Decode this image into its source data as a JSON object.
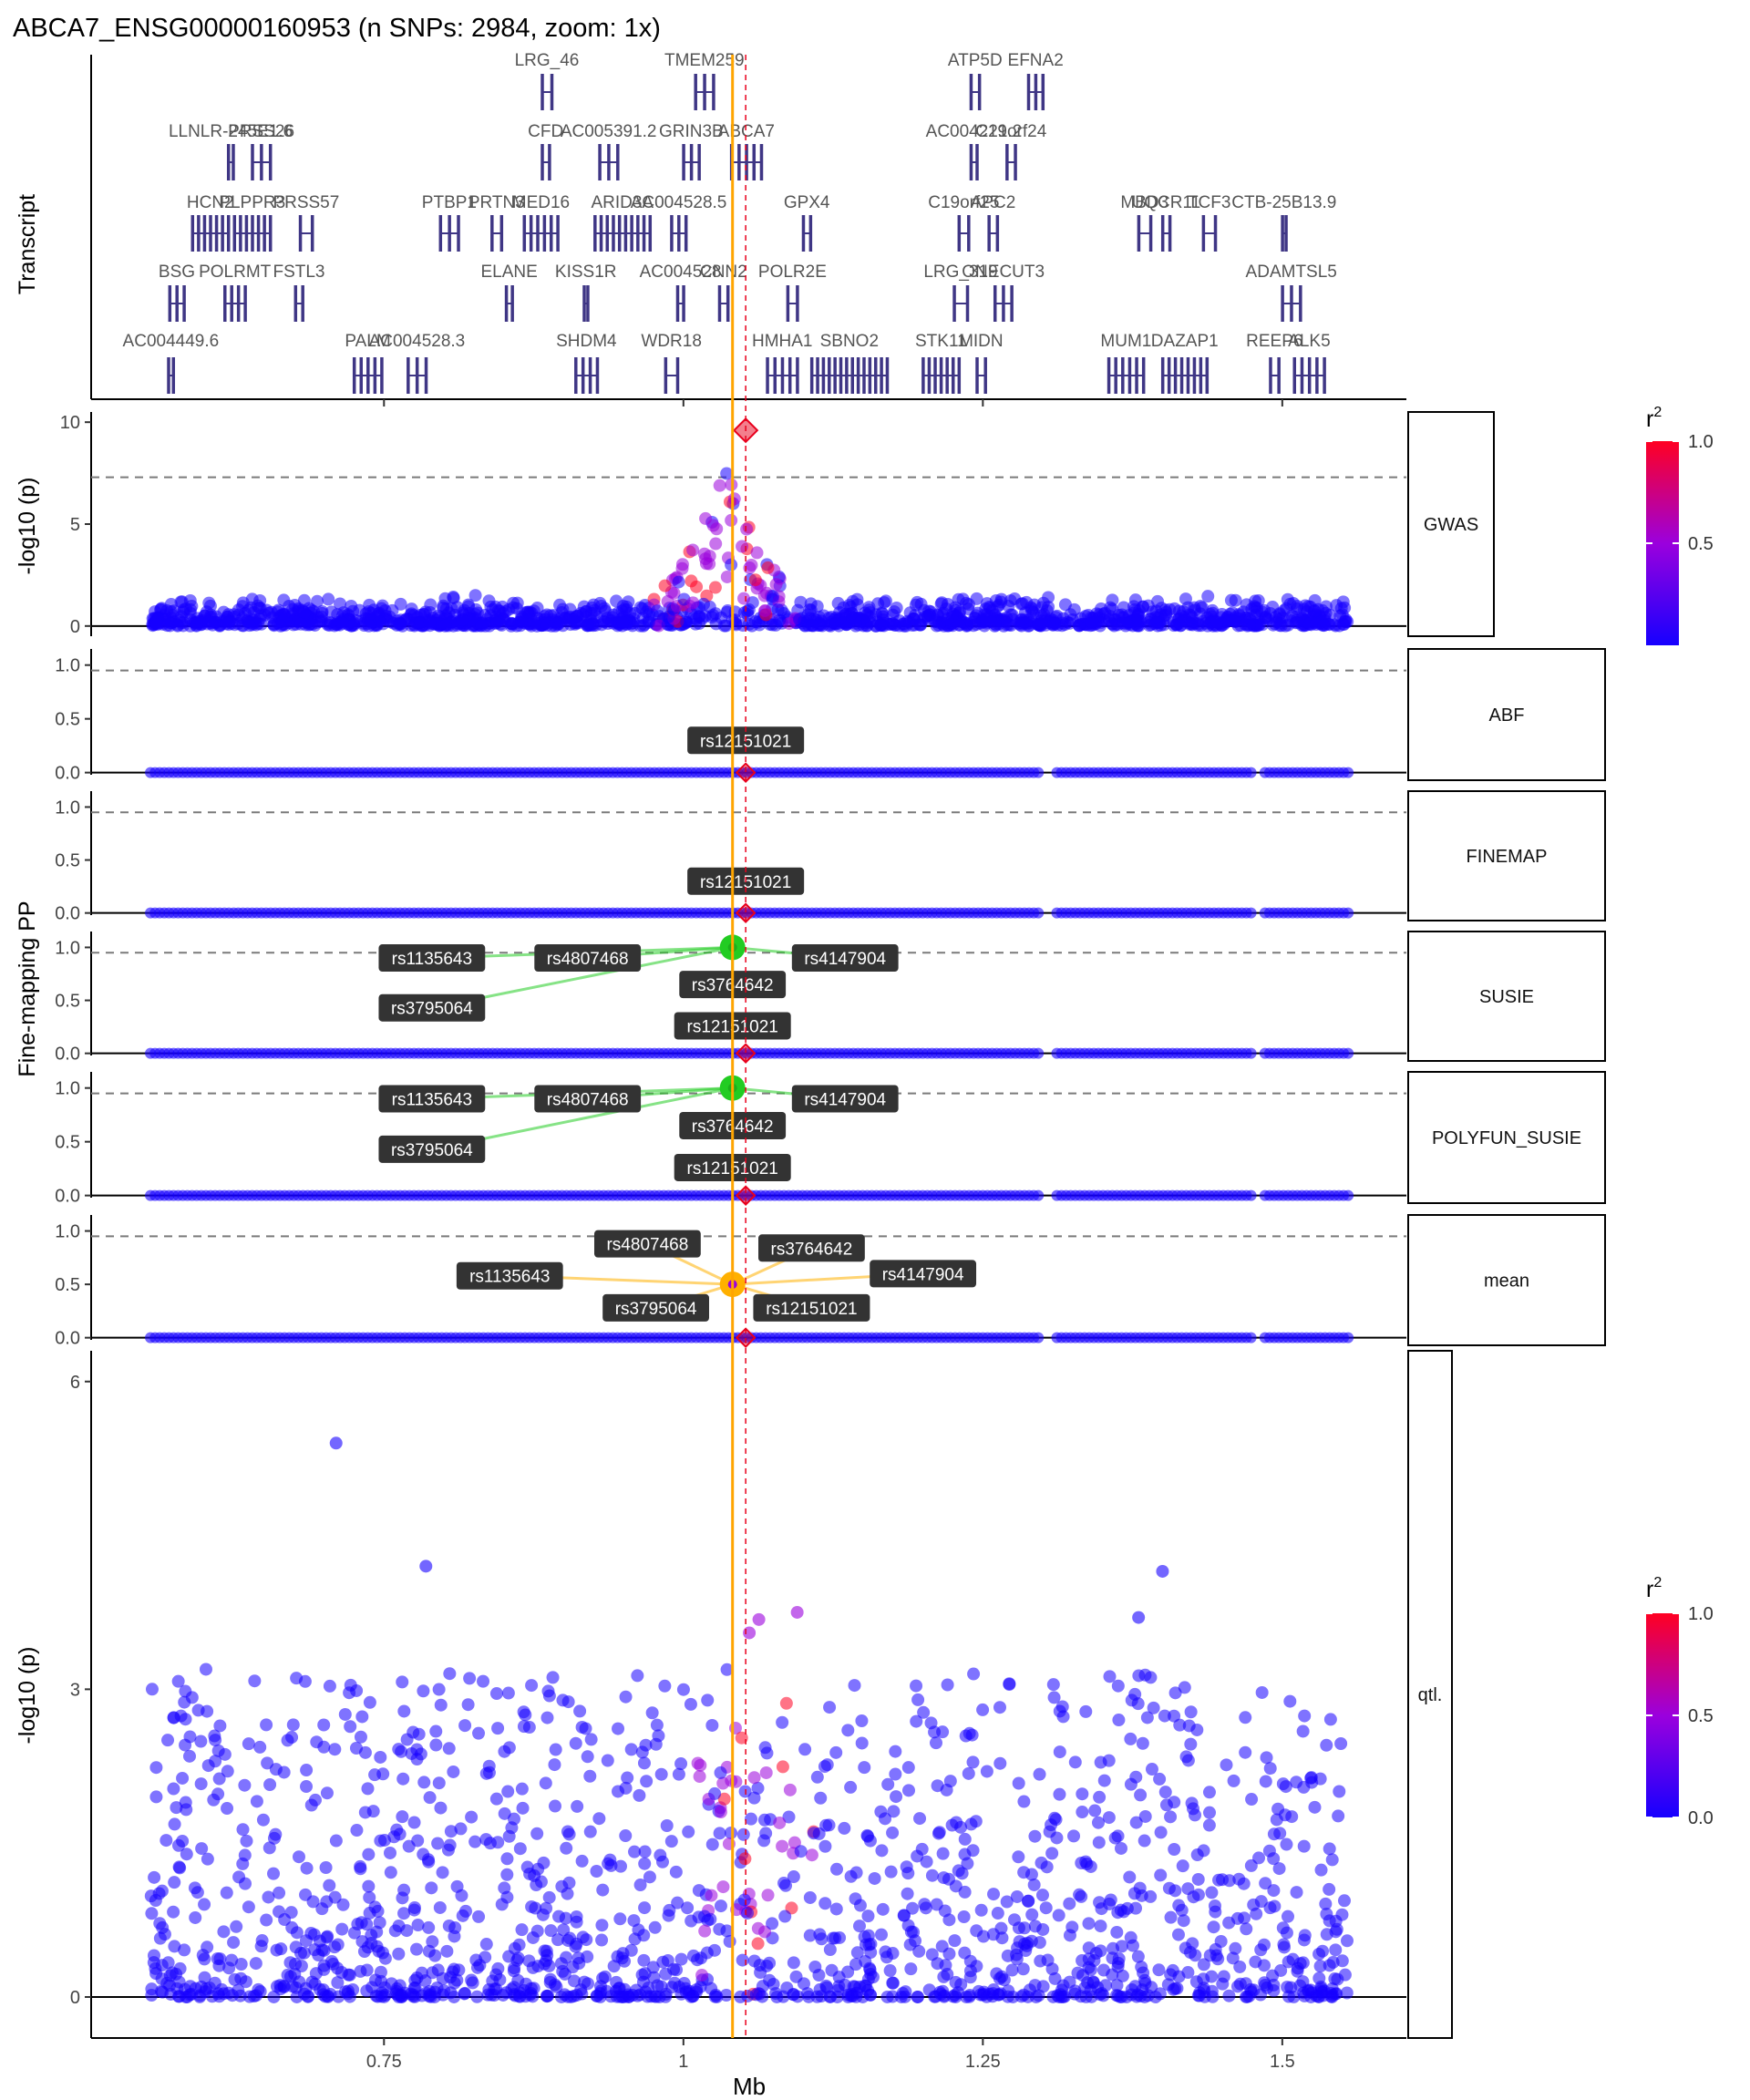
{
  "title": "ABCA7_ENSG00000160953   (n SNPs: 2984, zoom: 1x)",
  "xlabel": "Mb",
  "x_ticks": [
    {
      "value": 0.75,
      "label": "0.75"
    },
    {
      "value": 1.0,
      "label": "1"
    },
    {
      "value": 1.25,
      "label": "1.25"
    },
    {
      "value": 1.5,
      "label": "1.5"
    }
  ],
  "transcript_ylabel": "Transcript",
  "gwas_ylabel": "-log10 (p)",
  "fm_ylabel": "Fine-mapping PP",
  "qtl_ylabel": "-log10 (p)",
  "legend": {
    "title": "r2",
    "ticks_gwas": [
      "1.0",
      "0.5"
    ],
    "ticks_qtl": [
      "1.0",
      "0.5",
      "0.0"
    ],
    "gradient": [
      "#ff0022",
      "#9b00dd",
      "#1600ff"
    ]
  },
  "colors": {
    "gene": "#3f3685",
    "lead_line": "#ffa500",
    "threshold_line": "#7a7a7a",
    "credible_set_susie": "#22cc22",
    "credible_set_mean": "#ffb000",
    "lead_snp": "#e8001c"
  },
  "chart_data": [
    {
      "type": "gene_track",
      "panel": "Transcript",
      "genes": [
        {
          "name": "LRG_46",
          "start": 0.882,
          "end": 0.89,
          "row": 0
        },
        {
          "name": "TMEM259",
          "start": 1.01,
          "end": 1.025,
          "row": 0
        },
        {
          "name": "ATP5D",
          "start": 1.24,
          "end": 1.247,
          "row": 0
        },
        {
          "name": "EFNA2",
          "start": 1.288,
          "end": 1.3,
          "row": 0
        },
        {
          "name": "LLNLR-245E1.6",
          "start": 0.62,
          "end": 0.624,
          "row": 1
        },
        {
          "name": "PRSS26",
          "start": 0.64,
          "end": 0.655,
          "row": 1
        },
        {
          "name": "CFD",
          "start": 0.882,
          "end": 0.888,
          "row": 1
        },
        {
          "name": "AC005391.2",
          "start": 0.93,
          "end": 0.945,
          "row": 1
        },
        {
          "name": "GRIN3B",
          "start": 1.0,
          "end": 1.013,
          "row": 1
        },
        {
          "name": "ABCA7",
          "start": 1.04,
          "end": 1.065,
          "row": 1
        },
        {
          "name": "AC004221.2",
          "start": 1.24,
          "end": 1.245,
          "row": 1
        },
        {
          "name": "C19orf24",
          "start": 1.27,
          "end": 1.277,
          "row": 1
        },
        {
          "name": "HCN2",
          "start": 0.59,
          "end": 0.62,
          "row": 2
        },
        {
          "name": "PLPPR3",
          "start": 0.625,
          "end": 0.655,
          "row": 2
        },
        {
          "name": "PRSS57",
          "start": 0.68,
          "end": 0.69,
          "row": 2
        },
        {
          "name": "PTBP1",
          "start": 0.797,
          "end": 0.812,
          "row": 2
        },
        {
          "name": "PRTN3",
          "start": 0.84,
          "end": 0.848,
          "row": 2
        },
        {
          "name": "MED16",
          "start": 0.867,
          "end": 0.895,
          "row": 2
        },
        {
          "name": "ARID3A",
          "start": 0.926,
          "end": 0.972,
          "row": 2
        },
        {
          "name": "AC004528.5",
          "start": 0.99,
          "end": 1.002,
          "row": 2
        },
        {
          "name": "GPX4",
          "start": 1.1,
          "end": 1.106,
          "row": 2
        },
        {
          "name": "C19orf25",
          "start": 1.23,
          "end": 1.238,
          "row": 2
        },
        {
          "name": "APC2",
          "start": 1.255,
          "end": 1.262,
          "row": 2
        },
        {
          "name": "MBD3",
          "start": 1.38,
          "end": 1.39,
          "row": 2
        },
        {
          "name": "UQCR11",
          "start": 1.4,
          "end": 1.406,
          "row": 2
        },
        {
          "name": "TCF3",
          "start": 1.434,
          "end": 1.444,
          "row": 2
        },
        {
          "name": "CTB-25B13.9",
          "start": 1.5,
          "end": 1.503,
          "row": 2
        },
        {
          "name": "BSG",
          "start": 0.571,
          "end": 0.583,
          "row": 3
        },
        {
          "name": "POLRMT",
          "start": 0.617,
          "end": 0.634,
          "row": 3
        },
        {
          "name": "FSTL3",
          "start": 0.676,
          "end": 0.682,
          "row": 3
        },
        {
          "name": "ELANE",
          "start": 0.852,
          "end": 0.857,
          "row": 3
        },
        {
          "name": "KISS1R",
          "start": 0.917,
          "end": 0.92,
          "row": 3
        },
        {
          "name": "AC004528",
          "start": 0.995,
          "end": 1.0,
          "row": 3
        },
        {
          "name": "CNN2",
          "start": 1.03,
          "end": 1.037,
          "row": 3
        },
        {
          "name": "POLR2E",
          "start": 1.087,
          "end": 1.095,
          "row": 3
        },
        {
          "name": "LRG_319",
          "start": 1.226,
          "end": 1.237,
          "row": 3
        },
        {
          "name": "ONECUT3",
          "start": 1.26,
          "end": 1.274,
          "row": 3
        },
        {
          "name": "ADAMTSL5",
          "start": 1.5,
          "end": 1.515,
          "row": 3
        },
        {
          "name": "AC004449.6",
          "start": 0.57,
          "end": 0.574,
          "row": 4
        },
        {
          "name": "PALM",
          "start": 0.725,
          "end": 0.748,
          "row": 4
        },
        {
          "name": "AC004528.3",
          "start": 0.77,
          "end": 0.785,
          "row": 4
        },
        {
          "name": "SHDM4",
          "start": 0.91,
          "end": 0.928,
          "row": 4
        },
        {
          "name": "WDR18",
          "start": 0.985,
          "end": 0.995,
          "row": 4
        },
        {
          "name": "HMHA1",
          "start": 1.07,
          "end": 1.095,
          "row": 4
        },
        {
          "name": "SBNO2",
          "start": 1.107,
          "end": 1.17,
          "row": 4
        },
        {
          "name": "STK11",
          "start": 1.2,
          "end": 1.23,
          "row": 4
        },
        {
          "name": "MIDN",
          "start": 1.245,
          "end": 1.252,
          "row": 4
        },
        {
          "name": "MUM1",
          "start": 1.355,
          "end": 1.384,
          "row": 4
        },
        {
          "name": "DAZAP1",
          "start": 1.4,
          "end": 1.437,
          "row": 4
        },
        {
          "name": "REEP6",
          "start": 1.49,
          "end": 1.497,
          "row": 4
        },
        {
          "name": "ALK5",
          "start": 1.51,
          "end": 1.535,
          "row": 4
        }
      ]
    },
    {
      "type": "scatter",
      "panel": "GWAS",
      "strip_label": "GWAS",
      "ylim": [
        0,
        10.5
      ],
      "y_ticks": [
        0,
        5,
        10
      ],
      "threshold": 7.3,
      "lead_snp": {
        "x": 1.052,
        "y": 9.6
      },
      "x_range": [
        0.555,
        1.555
      ],
      "background_max": 1.3,
      "peak_center": 1.035,
      "peak_height": 8.0
    },
    {
      "type": "scatter",
      "panel": "ABF",
      "strip_label": "ABF",
      "ylim": [
        0,
        1.15
      ],
      "y_ticks": [
        0.0,
        0.5,
        1.0
      ],
      "threshold": 0.95,
      "labels": [
        {
          "text": "rs12151021",
          "x": 1.052,
          "y": 0.3
        }
      ]
    },
    {
      "type": "scatter",
      "panel": "FINEMAP",
      "strip_label": "FINEMAP",
      "ylim": [
        0,
        1.15
      ],
      "y_ticks": [
        0.0,
        0.5,
        1.0
      ],
      "threshold": 0.95,
      "labels": [
        {
          "text": "rs12151021",
          "x": 1.052,
          "y": 0.3
        }
      ]
    },
    {
      "type": "scatter",
      "panel": "SUSIE",
      "strip_label": "SUSIE",
      "ylim": [
        0,
        1.15
      ],
      "y_ticks": [
        0.0,
        0.5,
        1.0
      ],
      "threshold": 0.95,
      "credible_set_point": {
        "x": 1.041,
        "y": 1.0
      },
      "labels": [
        {
          "text": "rs1135643",
          "x": 0.79,
          "y": 0.9
        },
        {
          "text": "rs4807468",
          "x": 0.92,
          "y": 0.9
        },
        {
          "text": "rs3795064",
          "x": 0.79,
          "y": 0.43
        },
        {
          "text": "rs3764642",
          "x": 1.041,
          "y": 0.65
        },
        {
          "text": "rs4147904",
          "x": 1.135,
          "y": 0.9
        },
        {
          "text": "rs12151021",
          "x": 1.041,
          "y": 0.26
        }
      ]
    },
    {
      "type": "scatter",
      "panel": "POLYFUN_SUSIE",
      "strip_label": "POLYFUN_SUSIE",
      "ylim": [
        0,
        1.15
      ],
      "y_ticks": [
        0.0,
        0.5,
        1.0
      ],
      "threshold": 0.95,
      "credible_set_point": {
        "x": 1.041,
        "y": 1.0
      },
      "labels": [
        {
          "text": "rs1135643",
          "x": 0.79,
          "y": 0.9
        },
        {
          "text": "rs4807468",
          "x": 0.92,
          "y": 0.9
        },
        {
          "text": "rs3795064",
          "x": 0.79,
          "y": 0.43
        },
        {
          "text": "rs3764642",
          "x": 1.041,
          "y": 0.65
        },
        {
          "text": "rs4147904",
          "x": 1.135,
          "y": 0.9
        },
        {
          "text": "rs12151021",
          "x": 1.041,
          "y": 0.26
        }
      ]
    },
    {
      "type": "scatter",
      "panel": "mean",
      "strip_label": "mean",
      "ylim": [
        0,
        1.15
      ],
      "y_ticks": [
        0.0,
        0.5,
        1.0
      ],
      "threshold": 0.95,
      "credible_set_point": {
        "x": 1.041,
        "y": 0.5
      },
      "labels": [
        {
          "text": "rs4807468",
          "x": 0.97,
          "y": 0.88
        },
        {
          "text": "rs3764642",
          "x": 1.107,
          "y": 0.84
        },
        {
          "text": "rs1135643",
          "x": 0.855,
          "y": 0.58
        },
        {
          "text": "rs4147904",
          "x": 1.2,
          "y": 0.6
        },
        {
          "text": "rs3795064",
          "x": 0.977,
          "y": 0.28
        },
        {
          "text": "rs12151021",
          "x": 1.107,
          "y": 0.28
        }
      ]
    },
    {
      "type": "scatter",
      "panel": "qtl.",
      "strip_label": "qtl.",
      "ylim": [
        -0.4,
        6.3
      ],
      "y_ticks": [
        0,
        3,
        6
      ],
      "highlights": [
        {
          "x": 0.71,
          "y": 5.4
        },
        {
          "x": 0.785,
          "y": 4.2
        },
        {
          "x": 1.4,
          "y": 4.15
        },
        {
          "x": 1.095,
          "y": 3.75
        },
        {
          "x": 1.063,
          "y": 3.68
        },
        {
          "x": 1.055,
          "y": 3.55
        },
        {
          "x": 1.38,
          "y": 3.7
        }
      ]
    }
  ],
  "lead_line_x": 1.041,
  "lead_snp_x": 1.052
}
